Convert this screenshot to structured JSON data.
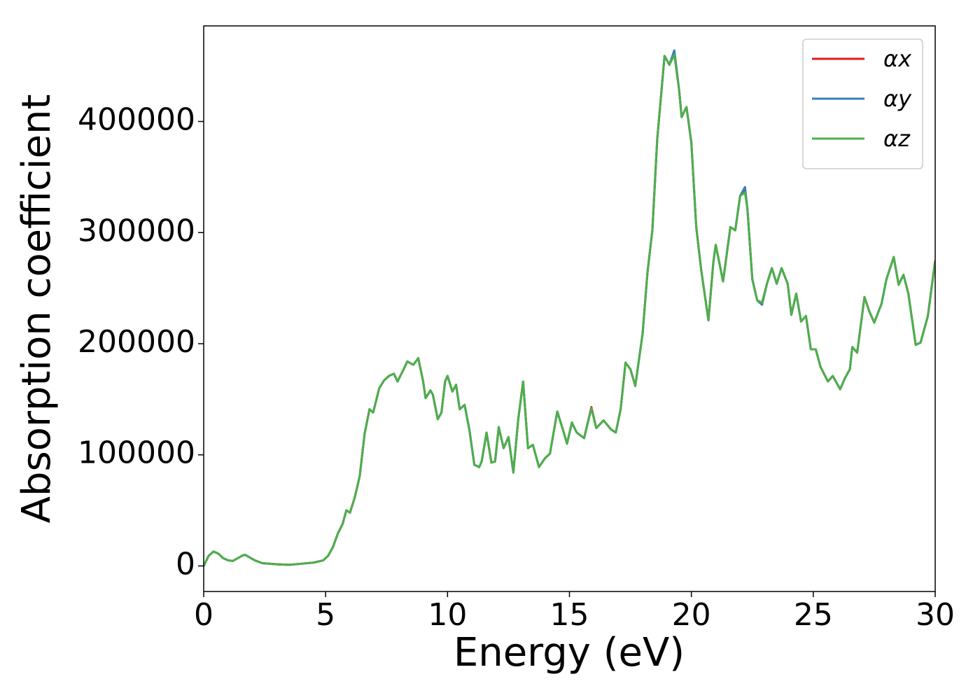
{
  "chart_data": {
    "type": "line",
    "xlabel": "Energy (eV)",
    "ylabel": "Absorption coefficient",
    "xlim": [
      0,
      30
    ],
    "ylim": [
      -23000,
      486000
    ],
    "xticks": [
      0,
      5,
      10,
      15,
      20,
      25,
      30
    ],
    "yticks": [
      0,
      100000,
      200000,
      300000,
      400000
    ],
    "legend": "upper right",
    "x": [
      0,
      0.2,
      0.4,
      0.6,
      0.8,
      1.0,
      1.2,
      1.4,
      1.6,
      1.7,
      1.9,
      2.1,
      2.4,
      3.0,
      3.5,
      4.0,
      4.5,
      4.9,
      5.1,
      5.3,
      5.5,
      5.7,
      5.85,
      6.0,
      6.2,
      6.4,
      6.6,
      6.8,
      6.95,
      7.2,
      7.4,
      7.6,
      7.8,
      7.95,
      8.2,
      8.35,
      8.6,
      8.8,
      9.0,
      9.1,
      9.3,
      9.4,
      9.6,
      9.75,
      9.9,
      10.0,
      10.2,
      10.35,
      10.5,
      10.7,
      10.9,
      11.1,
      11.3,
      11.4,
      11.6,
      11.8,
      11.95,
      12.1,
      12.3,
      12.5,
      12.7,
      12.9,
      13.1,
      13.3,
      13.5,
      13.75,
      14.0,
      14.2,
      14.5,
      14.7,
      14.9,
      15.1,
      15.3,
      15.6,
      15.9,
      16.1,
      16.4,
      16.7,
      16.9,
      17.1,
      17.3,
      17.5,
      17.7,
      18.0,
      18.2,
      18.4,
      18.6,
      18.9,
      19.1,
      19.3,
      19.5,
      19.6,
      19.8,
      20.0,
      20.2,
      20.4,
      20.7,
      20.9,
      21.0,
      21.3,
      21.6,
      21.8,
      22.0,
      22.2,
      22.3,
      22.5,
      22.7,
      22.9,
      23.1,
      23.3,
      23.5,
      23.7,
      23.95,
      24.1,
      24.3,
      24.5,
      24.7,
      24.9,
      25.1,
      25.3,
      25.6,
      25.8,
      26.1,
      26.3,
      26.5,
      26.6,
      26.8,
      27.1,
      27.3,
      27.5,
      27.8,
      28.0,
      28.3,
      28.5,
      28.7,
      28.9,
      29.2,
      29.4,
      29.7,
      30.0
    ],
    "series": [
      {
        "name": "αx",
        "color": "#e41a1c",
        "values": [
          0,
          9000,
          13000,
          11000,
          7000,
          5000,
          4500,
          7000,
          9500,
          10000,
          7500,
          5000,
          2500,
          1500,
          1000,
          2000,
          3000,
          5000,
          9000,
          17000,
          29000,
          38000,
          50000,
          48000,
          62000,
          81000,
          119000,
          141000,
          138000,
          160000,
          167000,
          171000,
          173000,
          166000,
          177000,
          184000,
          181000,
          187000,
          166000,
          151000,
          158000,
          154000,
          132000,
          138000,
          166000,
          171000,
          157000,
          163000,
          141000,
          145000,
          122000,
          91000,
          89000,
          94000,
          120000,
          93000,
          94000,
          125000,
          106000,
          116000,
          84000,
          132000,
          166000,
          106000,
          109000,
          89000,
          97000,
          101000,
          139000,
          125000,
          110000,
          129000,
          120000,
          115000,
          143000,
          124000,
          131000,
          123000,
          120000,
          141000,
          183000,
          177000,
          162000,
          209000,
          264000,
          302000,
          384000,
          459000,
          451000,
          463000,
          428000,
          404000,
          413000,
          381000,
          305000,
          267000,
          221000,
          273000,
          289000,
          256000,
          305000,
          302000,
          333000,
          339000,
          321000,
          258000,
          239000,
          237000,
          254000,
          268000,
          254000,
          268000,
          254000,
          226000,
          245000,
          220000,
          225000,
          195000,
          195000,
          179000,
          166000,
          171000,
          159000,
          169000,
          177000,
          197000,
          192000,
          242000,
          229000,
          219000,
          236000,
          258000,
          278000,
          253000,
          262000,
          245000,
          199000,
          201000,
          225000,
          275000
        ]
      },
      {
        "name": "αy",
        "color": "#377eb8",
        "values": [
          0,
          9000,
          13000,
          11000,
          7000,
          5000,
          4500,
          7000,
          9500,
          10000,
          7500,
          5000,
          2500,
          1500,
          1000,
          2000,
          3000,
          5000,
          9000,
          17000,
          29000,
          38000,
          50000,
          48000,
          62000,
          81000,
          119000,
          141000,
          138000,
          160000,
          167000,
          171000,
          173000,
          166000,
          177000,
          184000,
          181000,
          187000,
          166000,
          151000,
          158000,
          154000,
          132000,
          138000,
          166000,
          171000,
          157000,
          163000,
          141000,
          145000,
          122000,
          91000,
          89000,
          94000,
          120000,
          93000,
          94000,
          125000,
          106000,
          116000,
          84000,
          132000,
          166000,
          106000,
          109000,
          89000,
          97000,
          101000,
          139000,
          125000,
          110000,
          129000,
          120000,
          115000,
          142000,
          124000,
          131000,
          123000,
          120000,
          141000,
          183000,
          177000,
          162000,
          209000,
          264000,
          302000,
          384000,
          459000,
          451000,
          464000,
          428000,
          404000,
          413000,
          381000,
          305000,
          267000,
          221000,
          273000,
          289000,
          256000,
          305000,
          302000,
          333000,
          341000,
          321000,
          258000,
          239000,
          235000,
          254000,
          268000,
          254000,
          268000,
          254000,
          226000,
          245000,
          220000,
          225000,
          195000,
          195000,
          179000,
          166000,
          171000,
          159000,
          169000,
          177000,
          197000,
          192000,
          242000,
          229000,
          219000,
          236000,
          258000,
          278000,
          253000,
          262000,
          245000,
          199000,
          201000,
          225000,
          275000
        ]
      },
      {
        "name": "αz",
        "color": "#4daf4a",
        "values": [
          0,
          9000,
          13000,
          11000,
          7000,
          5000,
          4500,
          7000,
          9500,
          10000,
          7500,
          5000,
          2500,
          1500,
          1000,
          2000,
          3000,
          5000,
          9000,
          17000,
          29000,
          38000,
          50000,
          48000,
          62000,
          81000,
          119000,
          141000,
          138000,
          160000,
          167000,
          171000,
          173000,
          166000,
          177000,
          184000,
          181000,
          187000,
          166000,
          151000,
          158000,
          154000,
          132000,
          138000,
          166000,
          171000,
          157000,
          163000,
          141000,
          145000,
          122000,
          91000,
          89000,
          94000,
          120000,
          93000,
          94000,
          125000,
          106000,
          116000,
          84000,
          132000,
          166000,
          106000,
          109000,
          89000,
          97000,
          101000,
          139000,
          125000,
          110000,
          129000,
          120000,
          115000,
          142000,
          124000,
          131000,
          123000,
          120000,
          141000,
          183000,
          177000,
          162000,
          209000,
          264000,
          302000,
          384000,
          459000,
          451000,
          460000,
          428000,
          404000,
          413000,
          381000,
          305000,
          267000,
          221000,
          273000,
          289000,
          256000,
          305000,
          302000,
          333000,
          336000,
          321000,
          258000,
          239000,
          237000,
          254000,
          268000,
          254000,
          268000,
          254000,
          226000,
          245000,
          220000,
          225000,
          195000,
          195000,
          179000,
          166000,
          171000,
          159000,
          169000,
          177000,
          197000,
          192000,
          242000,
          229000,
          219000,
          236000,
          258000,
          278000,
          253000,
          262000,
          245000,
          199000,
          201000,
          225000,
          275000
        ]
      }
    ]
  }
}
